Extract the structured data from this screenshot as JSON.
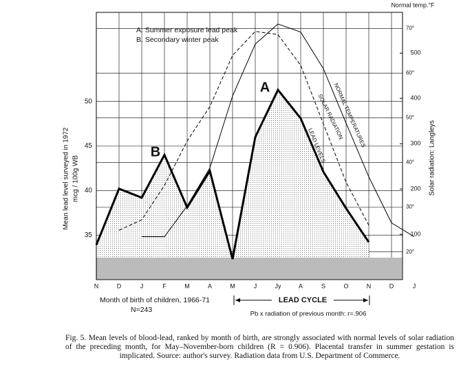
{
  "chart_data": {
    "type": "line",
    "categories": [
      "N",
      "D",
      "J",
      "F",
      "M",
      "A",
      "M",
      "J",
      "Jy",
      "A",
      "S",
      "O",
      "N",
      "D",
      "J"
    ],
    "ylabel": [
      "Mean lead level surveyed in 1972",
      "mcg / 100g WB"
    ],
    "y2label": "Solar radiation: Langleys",
    "y3label": "Normal temp.°F",
    "xlabel": "Month of birth of children, 1966-71",
    "n_label": "N=243",
    "ylim": [
      30,
      60
    ],
    "yticks": [
      35,
      40,
      45,
      50
    ],
    "y2lim": [
      0,
      590
    ],
    "y2ticks": [
      100,
      200,
      300,
      400,
      500
    ],
    "y3lim": [
      13.8,
      73.6
    ],
    "y3ticks": [
      {
        "value": 20,
        "label": "20°"
      },
      {
        "value": 30,
        "label": "30°"
      },
      {
        "value": 40,
        "label": "40°"
      },
      {
        "value": 50,
        "label": "50°"
      },
      {
        "value": 60,
        "label": "60°"
      },
      {
        "value": 70,
        "label": "70°"
      }
    ],
    "grid": true,
    "series": [
      {
        "name": "LEAD LEVELS",
        "color": "#000",
        "width": 3,
        "dash": "none",
        "axis": "y",
        "area": true,
        "values": [
          33.9,
          40.2,
          39.2,
          44,
          38.1,
          42.2,
          32.3,
          46,
          51.3,
          48.1,
          42.1,
          38,
          34.2,
          null,
          null
        ]
      },
      {
        "name": "SOLAR RADIATION",
        "color": "#000",
        "width": 1,
        "dash": "5,3",
        "axis": "y2",
        "area": false,
        "values": [
          null,
          109,
          132,
          208,
          306,
          382,
          495,
          548,
          541,
          473,
          344,
          215,
          120,
          null,
          null
        ]
      },
      {
        "name": "NORMAL TEMPERATURES",
        "color": "#000",
        "width": 1,
        "dash": "none",
        "axis": "y3",
        "area": false,
        "values": [
          null,
          null,
          23.4,
          23.4,
          30.3,
          38.8,
          54.9,
          66.5,
          71,
          69.2,
          61,
          48.8,
          36.8,
          26.5,
          23.4
        ]
      }
    ],
    "legend_notes": [
      "A.  Summer exposure lead peak",
      "B.  Secondary winter peak"
    ],
    "peak_labels": [
      "A",
      "B"
    ],
    "cycle_label": "LEAD CYCLE",
    "correlation_note": "Pb x radiation of previous month: r=.906"
  },
  "caption": "Fig. 5. Mean levels of blood-lead, ranked by month of birth, are strongly associated with normal levels of solar radiation of the preceding month, for May–November-born children (R = 0.906). Placental transfer in summer gestation is implicated. Source: author's survey. Radiation data from U.S. Department of Commerce."
}
